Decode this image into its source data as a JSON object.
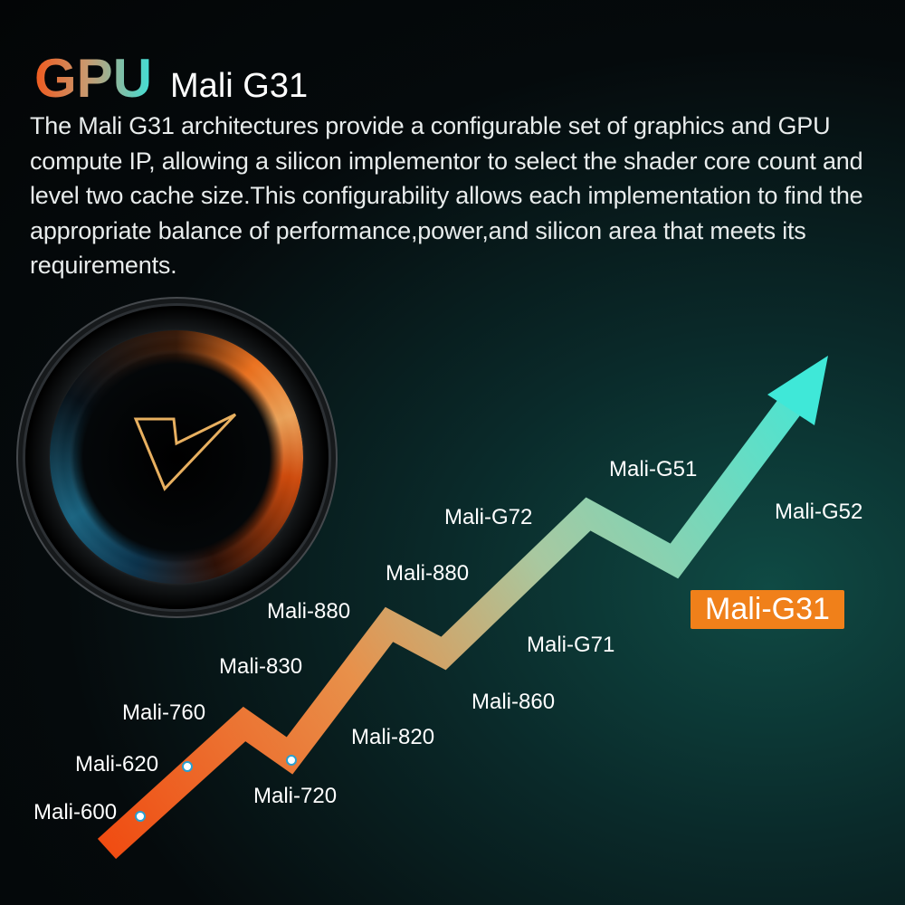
{
  "header": {
    "brand": "GPU",
    "model": "Mali G31"
  },
  "description": "The Mali G31 architectures provide a configurable set of graphics and GPU compute IP, allowing a silicon implementor to select the shader core count and level two cache size.This configurability allows each implementation to find the appropriate balance of performance,power,and silicon area that meets its requirements.",
  "timeline": {
    "labels": [
      "Mali-600",
      "Mali-620",
      "Mali-720",
      "Mali-760",
      "Mali-820",
      "Mali-830",
      "Mali-880",
      "Mali-880",
      "Mali-860",
      "Mali-G71",
      "Mali-G72",
      "Mali-G51",
      "Mali-G52"
    ],
    "highlight": "Mali-G31"
  },
  "colors": {
    "start": "#f05a1e",
    "end": "#3fe8d8",
    "badge": "#f0801a"
  },
  "icons": {
    "logo": "lens-v-logo-icon",
    "arrow": "trend-up-arrow-icon"
  }
}
